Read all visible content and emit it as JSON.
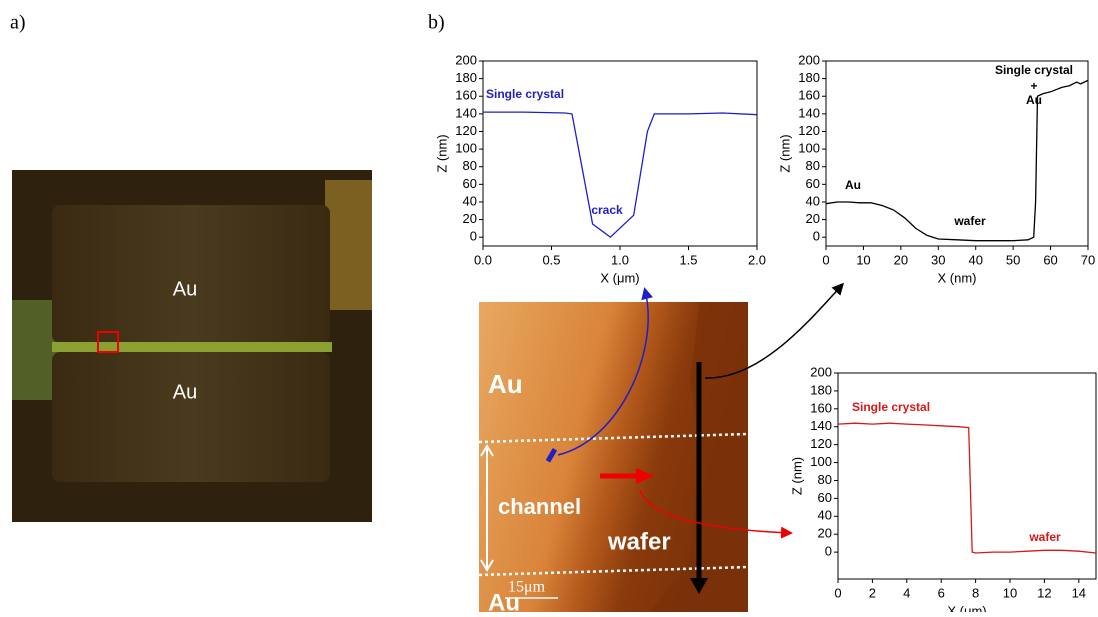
{
  "panels": {
    "a": {
      "label": "a)",
      "labels": [
        "Au",
        "Au"
      ]
    },
    "b": {
      "label": "b)"
    }
  },
  "afm_image": {
    "labels": [
      "Au",
      "channel",
      "wafer",
      "Au"
    ],
    "scale": "15μm"
  },
  "chart_data": [
    {
      "type": "line",
      "x_label": "X (μm)",
      "y_label": "Z (nm)",
      "x": [
        0,
        0.3,
        0.6,
        0.65,
        0.8,
        0.93,
        1.1,
        1.2,
        1.25,
        1.5,
        1.75,
        2.0
      ],
      "values": [
        142,
        142,
        141,
        140,
        15,
        0,
        25,
        120,
        140,
        140,
        141,
        139
      ],
      "color": "#1f1fc8",
      "xlim": [
        0,
        2
      ],
      "xticks": [
        {
          "value": 0,
          "label": "0.0"
        },
        0.5,
        {
          "value": 1,
          "label": "1.0"
        },
        1.5,
        {
          "value": 2,
          "label": "2.0"
        }
      ],
      "ylim": [
        -10,
        200
      ],
      "yticks": [
        0,
        20,
        40,
        60,
        80,
        100,
        120,
        140,
        160,
        180,
        200
      ],
      "annotations": [
        "Single crystal",
        "crack"
      ]
    },
    {
      "type": "line",
      "x_label": "X (nm)",
      "y_label": "Z (nm)",
      "x": [
        0,
        3,
        6,
        9,
        12,
        15,
        18,
        21,
        24,
        27,
        30,
        35,
        40,
        45,
        50,
        54,
        55.5,
        56,
        56.5,
        58,
        60,
        63,
        65,
        67,
        68,
        70
      ],
      "values": [
        38,
        40,
        40,
        39,
        39,
        36,
        31,
        22,
        10,
        2,
        -2,
        -3,
        -4,
        -4,
        -4,
        -3,
        0,
        40,
        160,
        163,
        165,
        170,
        172,
        176,
        174,
        178
      ],
      "color": "#000000",
      "xlim": [
        0,
        70
      ],
      "xticks": [
        0,
        10,
        20,
        30,
        40,
        50,
        60,
        70
      ],
      "ylim": [
        -10,
        200
      ],
      "yticks": [
        0,
        20,
        40,
        60,
        80,
        100,
        120,
        140,
        160,
        180,
        200
      ],
      "annotations": [
        "Single crystal",
        "+",
        "Au",
        "Au",
        "wafer"
      ]
    },
    {
      "type": "line",
      "x_label": "X (μm)",
      "y_label": "Z (nm)",
      "x": [
        0,
        1,
        2,
        3,
        4,
        5,
        6,
        7,
        7.6,
        7.8,
        8,
        9,
        10,
        11,
        12,
        13,
        14,
        15
      ],
      "values": [
        143,
        144,
        143,
        144,
        143,
        142,
        141,
        140,
        139,
        0,
        -1,
        0,
        0,
        1,
        2,
        2,
        1,
        -1
      ],
      "color": "#d81818",
      "xlim": [
        0,
        15
      ],
      "xticks": [
        0,
        2,
        4,
        6,
        8,
        10,
        12,
        14
      ],
      "ylim": [
        -30,
        200
      ],
      "yticks": [
        0,
        20,
        40,
        60,
        80,
        100,
        120,
        140,
        160,
        180,
        200
      ],
      "annotations": [
        "Single crystal",
        "wafer"
      ]
    }
  ]
}
